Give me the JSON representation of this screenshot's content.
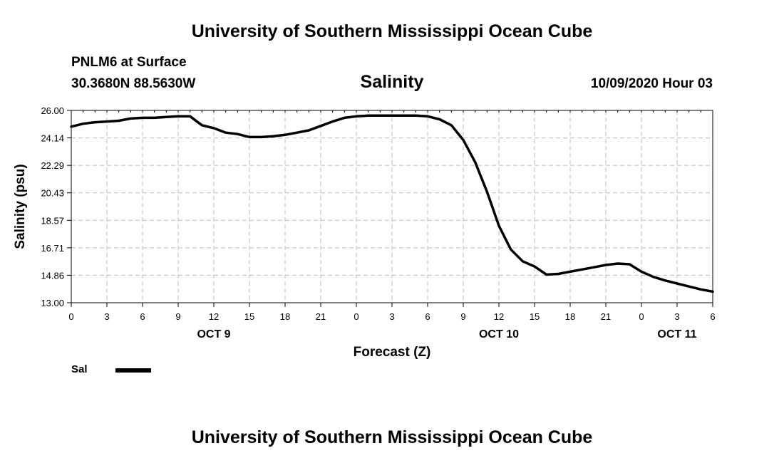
{
  "header": {
    "title": "University of Southern Mississippi Ocean Cube",
    "station": "PNLM6 at Surface",
    "coords": "30.3680N 88.5630W",
    "date": "10/09/2020 Hour 03",
    "footer": "University of Southern Mississippi Ocean Cube"
  },
  "legend": {
    "label": "Sal",
    "color": "#000000"
  },
  "chart_data": {
    "type": "line",
    "title": "Salinity",
    "xlabel": "Forecast (Z)",
    "ylabel": "Salinity (psu)",
    "ylim": [
      13.0,
      26.0
    ],
    "xlim": [
      0,
      54
    ],
    "yticks": [
      "13.00",
      "14.86",
      "16.71",
      "18.57",
      "20.43",
      "22.29",
      "24.14",
      "26.00"
    ],
    "xticks": [
      {
        "x": 0,
        "label": "0"
      },
      {
        "x": 3,
        "label": "3"
      },
      {
        "x": 6,
        "label": "6"
      },
      {
        "x": 9,
        "label": "9"
      },
      {
        "x": 12,
        "label": "12"
      },
      {
        "x": 15,
        "label": "15"
      },
      {
        "x": 18,
        "label": "18"
      },
      {
        "x": 21,
        "label": "21"
      },
      {
        "x": 24,
        "label": "0"
      },
      {
        "x": 27,
        "label": "3"
      },
      {
        "x": 30,
        "label": "6"
      },
      {
        "x": 33,
        "label": "9"
      },
      {
        "x": 36,
        "label": "12"
      },
      {
        "x": 39,
        "label": "15"
      },
      {
        "x": 42,
        "label": "18"
      },
      {
        "x": 45,
        "label": "21"
      },
      {
        "x": 48,
        "label": "0"
      },
      {
        "x": 51,
        "label": "3"
      },
      {
        "x": 54,
        "label": "6"
      }
    ],
    "day_labels": [
      {
        "x": 12,
        "label": "OCT 9"
      },
      {
        "x": 36,
        "label": "OCT 10"
      },
      {
        "x": 51,
        "label": "OCT 11"
      }
    ],
    "grid": true,
    "series": [
      {
        "name": "Sal",
        "x": [
          0,
          1,
          2,
          3,
          4,
          5,
          6,
          7,
          8,
          9,
          10,
          11,
          12,
          13,
          14,
          15,
          16,
          17,
          18,
          19,
          20,
          21,
          22,
          23,
          24,
          25,
          26,
          27,
          28,
          29,
          30,
          31,
          32,
          33,
          34,
          35,
          36,
          37,
          38,
          39,
          40,
          41,
          42,
          43,
          44,
          45,
          46,
          47,
          48,
          49,
          50,
          51,
          52,
          53,
          54
        ],
        "values": [
          24.9,
          25.1,
          25.2,
          25.25,
          25.3,
          25.45,
          25.5,
          25.5,
          25.55,
          25.6,
          25.6,
          25.0,
          24.8,
          24.5,
          24.4,
          24.2,
          24.2,
          24.25,
          24.35,
          24.5,
          24.65,
          24.95,
          25.25,
          25.5,
          25.6,
          25.65,
          25.65,
          25.65,
          25.65,
          25.65,
          25.6,
          25.4,
          25.0,
          24.0,
          22.5,
          20.5,
          18.2,
          16.6,
          15.8,
          15.45,
          14.9,
          14.95,
          15.1,
          15.25,
          15.4,
          15.55,
          15.65,
          15.6,
          15.1,
          14.75,
          14.5,
          14.3,
          14.1,
          13.9,
          13.75
        ]
      }
    ]
  }
}
